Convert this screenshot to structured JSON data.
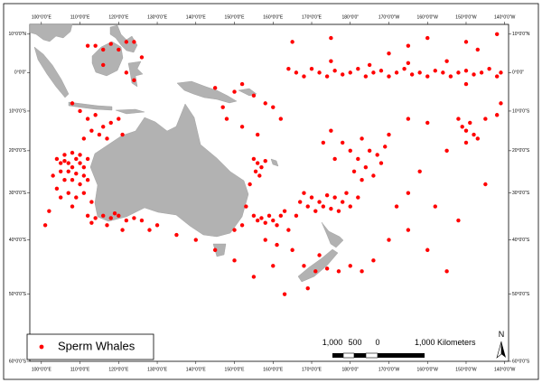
{
  "chart_data": {
    "type": "map",
    "xlim": [
      97,
      221
    ],
    "ylim": [
      -60,
      12.5
    ],
    "xticks": [
      {
        "value": 100,
        "label": "100°0'0\"E"
      },
      {
        "value": 110,
        "label": "110°0'0\"E"
      },
      {
        "value": 120,
        "label": "120°0'0\"E"
      },
      {
        "value": 130,
        "label": "130°0'0\"E"
      },
      {
        "value": 140,
        "label": "140°0'0\"E"
      },
      {
        "value": 150,
        "label": "150°0'0\"E"
      },
      {
        "value": 160,
        "label": "160°0'0\"E"
      },
      {
        "value": 170,
        "label": "170°0'0\"E"
      },
      {
        "value": 180,
        "label": "180°0'0\""
      },
      {
        "value": 190,
        "label": "170°0'0\"W"
      },
      {
        "value": 200,
        "label": "160°0'0\"W"
      },
      {
        "value": 210,
        "label": "150°0'0\"W"
      },
      {
        "value": 220,
        "label": "140°0'0\"W"
      }
    ],
    "yticks": [
      {
        "value": 10,
        "label": "10°0'0\"N"
      },
      {
        "value": 0,
        "label": "0°0'0\""
      },
      {
        "value": -10,
        "label": "10°0'0\"S"
      },
      {
        "value": -20,
        "label": "20°0'0\"S"
      },
      {
        "value": -30,
        "label": "30°0'0\"S"
      },
      {
        "value": -40,
        "label": "40°0'0\"S"
      },
      {
        "value": -50,
        "label": "50°0'0\"S"
      },
      {
        "value": -60,
        "label": "60°0'0\"S"
      }
    ],
    "series": [
      {
        "name": "Sperm Whales",
        "color": "#ff0000",
        "points": [
          [
            104,
            -22
          ],
          [
            105,
            -23
          ],
          [
            106,
            -22.5
          ],
          [
            107,
            -23
          ],
          [
            108,
            -24
          ],
          [
            109,
            -22
          ],
          [
            110,
            -23
          ],
          [
            105,
            -25
          ],
          [
            107,
            -25
          ],
          [
            109,
            -25.5
          ],
          [
            111,
            -24
          ],
          [
            106,
            -27
          ],
          [
            108,
            -27
          ],
          [
            110,
            -28
          ],
          [
            112,
            -27
          ],
          [
            104,
            -29
          ],
          [
            107,
            -30
          ],
          [
            109,
            -31
          ],
          [
            111,
            -30
          ],
          [
            113,
            -32
          ],
          [
            106,
            -21
          ],
          [
            108,
            -20.5
          ],
          [
            110,
            -21
          ],
          [
            112,
            -22
          ],
          [
            103,
            -26
          ],
          [
            111,
            -26
          ],
          [
            105,
            -31
          ],
          [
            108,
            -33
          ],
          [
            102,
            -34
          ],
          [
            101,
            -37
          ],
          [
            112,
            -35
          ],
          [
            114,
            -35.5
          ],
          [
            116,
            -35
          ],
          [
            118,
            -35.5
          ],
          [
            120,
            -35
          ],
          [
            122,
            -36
          ],
          [
            124,
            -35.5
          ],
          [
            117,
            -37
          ],
          [
            121,
            -38
          ],
          [
            126,
            -36
          ],
          [
            128,
            -38
          ],
          [
            113,
            -36.5
          ],
          [
            119,
            -34.5
          ],
          [
            130,
            -37
          ],
          [
            110,
            -10
          ],
          [
            112,
            -12
          ],
          [
            114,
            -11
          ],
          [
            116,
            -14
          ],
          [
            118,
            -13
          ],
          [
            115,
            -16
          ],
          [
            117,
            -17
          ],
          [
            113,
            -15
          ],
          [
            120,
            -12
          ],
          [
            108,
            -8
          ],
          [
            111,
            -17
          ],
          [
            121,
            -16
          ],
          [
            112,
            7
          ],
          [
            114,
            7
          ],
          [
            116,
            6
          ],
          [
            118,
            7.5
          ],
          [
            120,
            6
          ],
          [
            122,
            8
          ],
          [
            124,
            8
          ],
          [
            126,
            4
          ],
          [
            116,
            2
          ],
          [
            122,
            0
          ],
          [
            124,
            -2
          ],
          [
            145,
            -4
          ],
          [
            150,
            -5
          ],
          [
            152,
            -3
          ],
          [
            155,
            -6
          ],
          [
            158,
            -8
          ],
          [
            148,
            -12
          ],
          [
            152,
            -14
          ],
          [
            156,
            -16
          ],
          [
            147,
            -9
          ],
          [
            160,
            -9
          ],
          [
            162,
            -12
          ],
          [
            155,
            -22
          ],
          [
            156,
            -23
          ],
          [
            157,
            -24
          ],
          [
            155.5,
            -25
          ],
          [
            156.5,
            -26
          ],
          [
            158,
            -22.5
          ],
          [
            154,
            -28
          ],
          [
            153,
            -33
          ],
          [
            152,
            -37
          ],
          [
            150,
            -38
          ],
          [
            155,
            -35
          ],
          [
            156,
            -36
          ],
          [
            157,
            -35.5
          ],
          [
            158,
            -36.5
          ],
          [
            159,
            -35
          ],
          [
            160,
            -36
          ],
          [
            161,
            -37
          ],
          [
            162,
            -35
          ],
          [
            163,
            -34
          ],
          [
            164,
            -38
          ],
          [
            158,
            -40
          ],
          [
            161,
            -41
          ],
          [
            168,
            -30
          ],
          [
            170,
            -31
          ],
          [
            172,
            -32
          ],
          [
            174,
            -30.5
          ],
          [
            176,
            -31
          ],
          [
            178,
            -32
          ],
          [
            171,
            -34
          ],
          [
            173,
            -33
          ],
          [
            175,
            -33.5
          ],
          [
            177,
            -34
          ],
          [
            169,
            -33
          ],
          [
            166,
            -35
          ],
          [
            180,
            -33
          ],
          [
            179,
            -30
          ],
          [
            182,
            -31
          ],
          [
            167,
            -32
          ],
          [
            178,
            -18
          ],
          [
            180,
            -20
          ],
          [
            182,
            -22
          ],
          [
            184,
            -24
          ],
          [
            186,
            -26
          ],
          [
            188,
            -23
          ],
          [
            185,
            -20
          ],
          [
            181,
            -25
          ],
          [
            183,
            -27
          ],
          [
            187,
            -21
          ],
          [
            189,
            -19
          ],
          [
            190,
            -16
          ],
          [
            175,
            -15
          ],
          [
            173,
            -18
          ],
          [
            176,
            -22
          ],
          [
            183,
            -17
          ],
          [
            164,
            1
          ],
          [
            166,
            0
          ],
          [
            168,
            -1
          ],
          [
            170,
            1
          ],
          [
            172,
            0
          ],
          [
            174,
            -1
          ],
          [
            176,
            0.5
          ],
          [
            178,
            -0.5
          ],
          [
            180,
            0
          ],
          [
            182,
            1
          ],
          [
            184,
            -1
          ],
          [
            186,
            0
          ],
          [
            188,
            0.5
          ],
          [
            190,
            -1
          ],
          [
            192,
            0
          ],
          [
            194,
            1
          ],
          [
            196,
            -0.5
          ],
          [
            198,
            0
          ],
          [
            200,
            -1
          ],
          [
            202,
            0.5
          ],
          [
            204,
            0
          ],
          [
            206,
            -1
          ],
          [
            208,
            0
          ],
          [
            210,
            0.5
          ],
          [
            212,
            -0.5
          ],
          [
            214,
            0
          ],
          [
            216,
            1
          ],
          [
            218,
            -1
          ],
          [
            219,
            0
          ],
          [
            185,
            2
          ],
          [
            195,
            2.5
          ],
          [
            205,
            3
          ],
          [
            175,
            3
          ],
          [
            210,
            -3
          ],
          [
            165,
            8
          ],
          [
            175,
            9
          ],
          [
            195,
            7
          ],
          [
            200,
            9
          ],
          [
            210,
            8
          ],
          [
            218,
            10
          ],
          [
            190,
            5
          ],
          [
            213,
            6
          ],
          [
            208,
            -12
          ],
          [
            209,
            -14
          ],
          [
            210,
            -15
          ],
          [
            211,
            -13
          ],
          [
            212,
            -16
          ],
          [
            213,
            -17
          ],
          [
            210,
            -18
          ],
          [
            215,
            -12
          ],
          [
            219,
            -8
          ],
          [
            218,
            -11
          ],
          [
            200,
            -13
          ],
          [
            195,
            -12
          ],
          [
            205,
            -20
          ],
          [
            215,
            -28
          ],
          [
            195,
            -30
          ],
          [
            168,
            -45
          ],
          [
            171,
            -46
          ],
          [
            174,
            -45.5
          ],
          [
            177,
            -46
          ],
          [
            180,
            -45
          ],
          [
            183,
            -46
          ],
          [
            186,
            -44
          ],
          [
            172,
            -43
          ],
          [
            165,
            -42
          ],
          [
            169,
            -49
          ],
          [
            190,
            -40
          ],
          [
            195,
            -38
          ],
          [
            200,
            -42
          ],
          [
            205,
            -46
          ],
          [
            192,
            -33
          ],
          [
            160,
            -45
          ],
          [
            155,
            -47
          ],
          [
            163,
            -50
          ],
          [
            150,
            -44
          ],
          [
            140,
            -40
          ],
          [
            135,
            -39
          ],
          [
            145,
            -42
          ],
          [
            198,
            -25
          ],
          [
            202,
            -33
          ],
          [
            208,
            -36
          ]
        ]
      }
    ],
    "scale_bar": {
      "labels": [
        "1,000",
        "500",
        "0",
        "1,000 Kilometers"
      ]
    },
    "north_arrow": "N"
  }
}
